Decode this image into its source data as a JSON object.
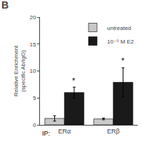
{
  "chart_data": {
    "type": "bar",
    "title": "B",
    "ylabel": "Relative Enrichment\n(specific Ab/IgG)",
    "xlabel": "IP:",
    "categories": [
      "ERα",
      "ERβ"
    ],
    "series": [
      {
        "name": "untreated",
        "color": "#c8c8c8",
        "values": [
          1.2,
          1.1
        ],
        "errors": [
          0.5,
          0.15
        ]
      },
      {
        "name": "10⁻⁹ M E2",
        "color": "#1a1a1a",
        "values": [
          6.0,
          7.9
        ],
        "errors": [
          1.0,
          2.7
        ]
      }
    ],
    "annotations": [
      {
        "text": "*",
        "category": "ERα",
        "series": "10⁻⁹ M E2",
        "y": 7.2
      },
      {
        "text": "*",
        "category": "ERβ",
        "series": "10⁻⁹ M E2",
        "y": 10.8
      }
    ],
    "ylim": [
      0,
      20
    ],
    "yticks": [
      0,
      5,
      10,
      15,
      20
    ],
    "grid": false,
    "legend": "upper right"
  }
}
